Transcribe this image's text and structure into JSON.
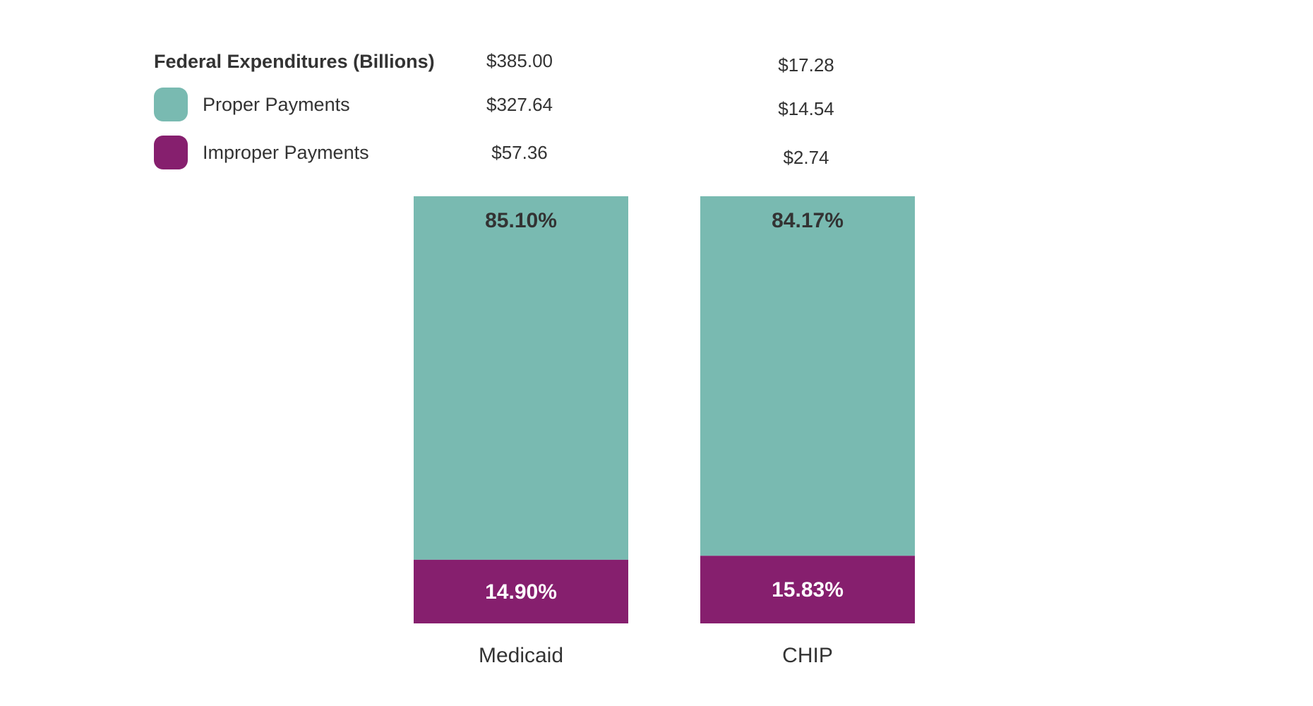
{
  "colors": {
    "proper": "#79bab1",
    "improper": "#861f6e",
    "text": "#333333",
    "label_on_dark": "#ffffff"
  },
  "legend": {
    "heading": "Federal Expenditures (Billions)",
    "items": [
      {
        "label": "Proper Payments",
        "color": "#79bab1"
      },
      {
        "label": "Improper Payments",
        "color": "#861f6e"
      }
    ]
  },
  "chart_data": {
    "type": "bar",
    "stacked": true,
    "normalized_percent": true,
    "categories": [
      "Medicaid",
      "CHIP"
    ],
    "series": [
      {
        "name": "Proper Payments",
        "values": [
          85.1,
          84.17
        ],
        "labels": [
          "85.10%",
          "84.17%"
        ]
      },
      {
        "name": "Improper Payments",
        "values": [
          14.9,
          15.83
        ],
        "labels": [
          "14.90%",
          "15.83%"
        ]
      }
    ],
    "federal_expenditures": {
      "Medicaid": {
        "total": "$385.00",
        "proper": "$327.64",
        "improper": "$57.36"
      },
      "CHIP": {
        "total": "$17.28",
        "proper": "$14.54",
        "improper": "$2.74"
      }
    },
    "ylim": [
      0,
      100
    ],
    "grid": false,
    "legend_position": "top-left"
  }
}
